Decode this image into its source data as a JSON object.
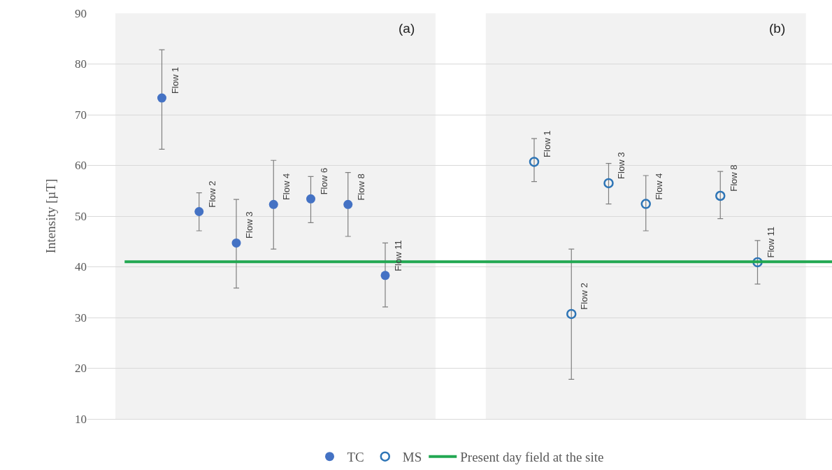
{
  "chart_data": {
    "type": "scatter",
    "ylabel": "Intensity [µT]",
    "categories": [
      null,
      null,
      null,
      null,
      null,
      null,
      null,
      null,
      null,
      null,
      null,
      null,
      null,
      null,
      null,
      null,
      null,
      null,
      null
    ],
    "series": [
      {
        "name": "TC",
        "color": "#4472c4",
        "marker": "circle",
        "values": [
          null,
          73.3,
          50.9,
          44.7,
          52.3,
          53.4,
          52.3,
          38.3,
          null,
          null,
          null,
          null,
          null,
          null,
          null,
          null,
          null,
          null,
          null
        ],
        "errors": [
          null,
          [
            63.2,
            82.8
          ],
          [
            47.1,
            54.6
          ],
          [
            35.8,
            53.3
          ],
          [
            43.5,
            61.0
          ],
          [
            48.7,
            57.8
          ],
          [
            46.0,
            58.6
          ],
          [
            32.1,
            44.7
          ],
          null,
          null,
          null,
          null,
          null,
          null,
          null,
          null,
          null,
          null,
          null
        ],
        "value_labels": [
          null,
          "Flow 1",
          "Flow 2",
          "Flow 3",
          "Flow 4",
          "Flow 6",
          "Flow 8",
          "Flow 11",
          null,
          null,
          null,
          null,
          null,
          null,
          null,
          null,
          null,
          null,
          null
        ]
      },
      {
        "name": "MS",
        "color": "#2e75b6",
        "marker": "circle-open",
        "values": [
          null,
          null,
          null,
          null,
          null,
          null,
          null,
          null,
          null,
          null,
          null,
          60.7,
          30.7,
          56.5,
          52.4,
          null,
          54.0,
          40.9,
          null
        ],
        "errors": [
          null,
          null,
          null,
          null,
          null,
          null,
          null,
          null,
          null,
          null,
          null,
          [
            56.8,
            65.3
          ],
          [
            17.8,
            43.5
          ],
          [
            52.4,
            60.4
          ],
          [
            47.1,
            58.0
          ],
          null,
          [
            49.5,
            58.8
          ],
          [
            36.6,
            45.2
          ],
          null
        ],
        "value_labels": [
          null,
          null,
          null,
          null,
          null,
          null,
          null,
          null,
          null,
          null,
          null,
          "Flow 1",
          "Flow 2",
          "Flow 3",
          "Flow 4",
          null,
          "Flow 8",
          "Flow 11",
          null
        ]
      }
    ],
    "ref_lines": [
      {
        "axis": "y",
        "value": 41,
        "label": "Present day field at the site",
        "color": "#22a852",
        "line_style": "solid"
      }
    ],
    "annotations": [
      "(a)",
      "(b)"
    ],
    "ylim": [
      10,
      90
    ],
    "yticks": [
      10,
      20,
      30,
      40,
      50,
      60,
      70,
      80,
      90
    ],
    "grid": "y",
    "legend": "bottom",
    "tick_labels": "y"
  }
}
